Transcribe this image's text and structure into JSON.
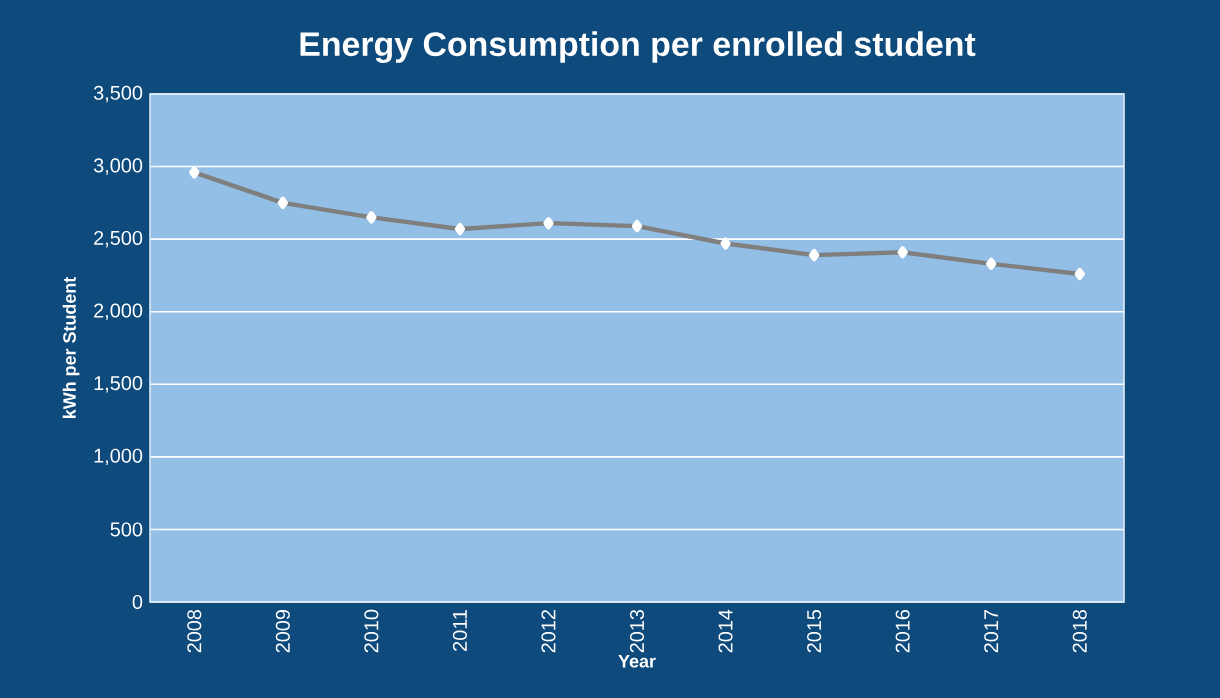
{
  "chart_data": {
    "type": "line",
    "title": "Energy Consumption per enrolled student",
    "xlabel": "Year",
    "ylabel": "kWh per Student",
    "categories": [
      "2008",
      "2009",
      "2010",
      "2011",
      "2012",
      "2013",
      "2014",
      "2015",
      "2016",
      "2017",
      "2018"
    ],
    "series": [
      {
        "color": "#7f7f7f",
        "values": [
          2960,
          2750,
          2650,
          2570,
          2610,
          2590,
          2470,
          2390,
          2410,
          2330,
          2260
        ]
      }
    ],
    "ylim": [
      0,
      3500
    ],
    "yticks": [
      {
        "value": 0,
        "label": "0"
      },
      {
        "value": 500,
        "label": "500"
      },
      {
        "value": 1000,
        "label": "1,000"
      },
      {
        "value": 1500,
        "label": "1,500"
      },
      {
        "value": 2000,
        "label": "2,000"
      },
      {
        "value": 2500,
        "label": "2,500"
      },
      {
        "value": 3000,
        "label": "3,000"
      },
      {
        "value": 3500,
        "label": "3,500"
      }
    ],
    "grid": "y",
    "marker": "diamond",
    "line_style": "solid"
  }
}
